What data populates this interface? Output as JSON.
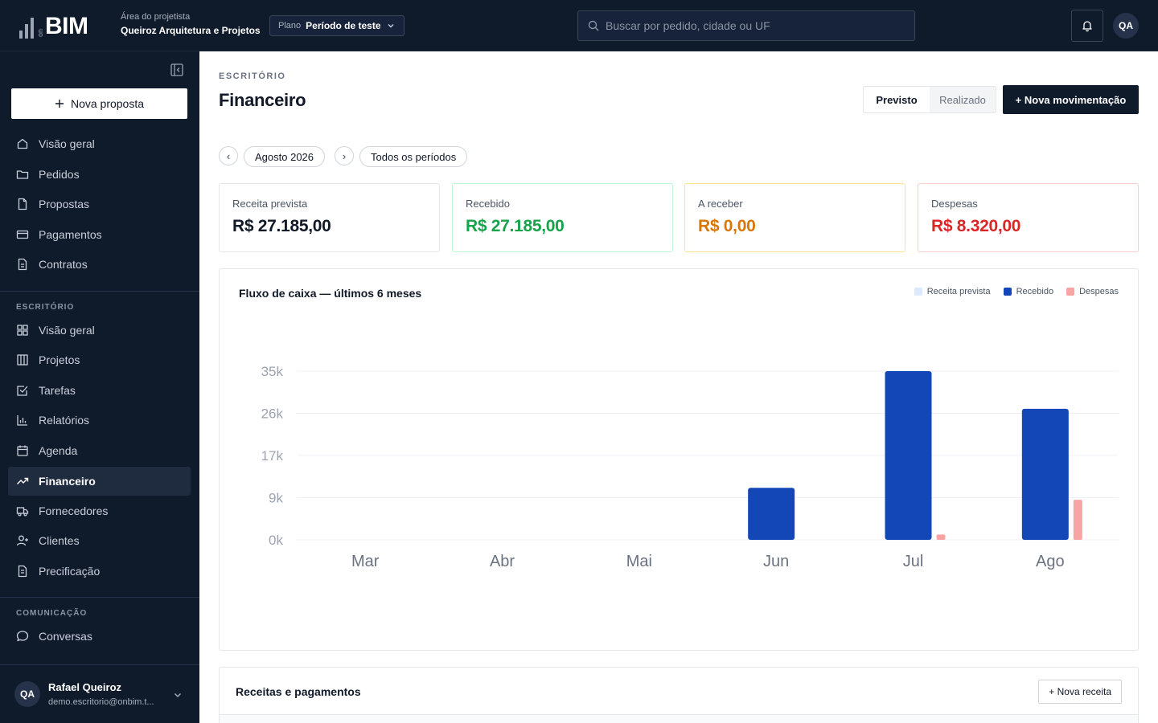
{
  "brand": {
    "logo_small": "on",
    "logo_text": "BIM"
  },
  "header": {
    "area_label": "Área do projetista",
    "area_name": "Queiroz Arquitetura e Projetos",
    "plan_label": "Plano",
    "plan_value": "Período de teste",
    "search_placeholder": "Buscar por pedido, cidade ou UF",
    "avatar_initials": "QA"
  },
  "sidebar": {
    "new_button": "Nova proposta",
    "main_items": [
      {
        "label": "Visão geral",
        "icon": "home-icon"
      },
      {
        "label": "Pedidos",
        "icon": "folder-icon"
      },
      {
        "label": "Propostas",
        "icon": "document-icon"
      },
      {
        "label": "Pagamentos",
        "icon": "credit-card-icon"
      },
      {
        "label": "Contratos",
        "icon": "contract-icon"
      }
    ],
    "section_office": "ESCRITÓRIO",
    "office_items": [
      {
        "label": "Visão geral",
        "icon": "grid-icon"
      },
      {
        "label": "Projetos",
        "icon": "columns-icon"
      },
      {
        "label": "Tarefas",
        "icon": "checkbox-icon"
      },
      {
        "label": "Relatórios",
        "icon": "bar-chart-icon"
      },
      {
        "label": "Agenda",
        "icon": "calendar-icon"
      },
      {
        "label": "Financeiro",
        "icon": "trending-icon",
        "active": true
      },
      {
        "label": "Fornecedores",
        "icon": "truck-icon"
      },
      {
        "label": "Clientes",
        "icon": "user-plus-icon"
      },
      {
        "label": "Precificação",
        "icon": "pricing-icon"
      }
    ],
    "section_comm": "COMUNICAÇÃO",
    "comm_items": [
      {
        "label": "Conversas",
        "icon": "chat-icon"
      }
    ],
    "user": {
      "initials": "QA",
      "name": "Rafael Queiroz",
      "email": "demo.escritorio@onbim.t..."
    }
  },
  "page": {
    "eyebrow": "ESCRITÓRIO",
    "title": "Financeiro",
    "toggle_on": "Previsto",
    "toggle_off": "Realizado",
    "new_movement": "+ Nova movimentação",
    "prev_symbol": "‹",
    "next_symbol": "›",
    "period": "Agosto 2026",
    "all_periods": "Todos os períodos"
  },
  "cards": [
    {
      "label": "Receita prevista",
      "value": "R$ 27.185,00",
      "color": "#111827",
      "border": "#e5e7eb"
    },
    {
      "label": "Recebido",
      "value": "R$ 27.185,00",
      "color": "#16a34a",
      "border": "#bbf7d0"
    },
    {
      "label": "A receber",
      "value": "R$ 0,00",
      "color": "#d97706",
      "border": "#fde68a"
    },
    {
      "label": "Despesas",
      "value": "R$ 8.320,00",
      "color": "#dc2626",
      "border": "#fecaca"
    }
  ],
  "chart_data": {
    "type": "bar",
    "title": "Fluxo de caixa — últimos 6 meses",
    "categories": [
      "Mar",
      "Abr",
      "Mai",
      "Jun",
      "Jul",
      "Ago"
    ],
    "y_ticks": [
      "0k",
      "9k",
      "17k",
      "26k",
      "35k"
    ],
    "ylim": [
      0,
      35000
    ],
    "grid": true,
    "legend_position": "top-right",
    "series": [
      {
        "name": "Receita prevista",
        "color": "#dbeafe",
        "values": [
          0,
          0,
          0,
          0,
          0,
          0
        ]
      },
      {
        "name": "Recebido",
        "color": "#1347b8",
        "values": [
          0,
          0,
          0,
          10800,
          35000,
          27185
        ]
      },
      {
        "name": "Despesas",
        "color": "#f8a4a4",
        "values": [
          0,
          0,
          0,
          0,
          1100,
          8320
        ]
      }
    ]
  },
  "table": {
    "title": "Receitas e pagamentos",
    "new_button": "+ Nova receita"
  }
}
